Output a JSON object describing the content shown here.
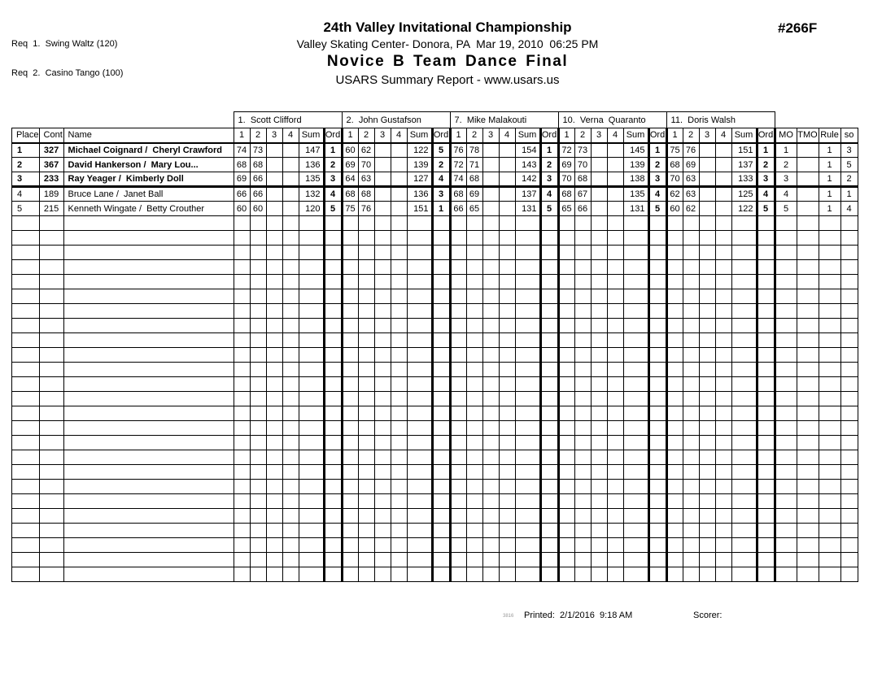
{
  "req": {
    "lines": [
      "Req  1.  Swing Waltz (120)",
      "Req  2.  Casino Tango (100)"
    ]
  },
  "header": {
    "event_number": "#266F",
    "title": "24th Valley Invitational Championship",
    "subtitle": "Valley Skating Center- Donora, PA  Mar 19, 2010  06:25 PM",
    "event_title": "Novice B Team Dance Final",
    "report_title": "USARS Summary Report - www.usars.us"
  },
  "table": {
    "left_headers": [
      "Place",
      "Cont",
      "Name"
    ],
    "judges": [
      "1.  Scott Clifford",
      "2.  John Gustafson",
      "7.  Mike Malakouti",
      "10.  Verna  Quaranto",
      "11.  Doris Walsh"
    ],
    "judge_subheaders": [
      "1",
      "2",
      "3",
      "4",
      "Sum",
      "Ord"
    ],
    "right_headers": [
      "MO",
      "TMO",
      "Rule",
      "so"
    ],
    "rows": [
      {
        "place": "1",
        "cont": "327",
        "name": "Michael Coignard /  Cheryl Crawford",
        "bold": true,
        "judge_scores": [
          [
            "74",
            "73",
            "",
            "",
            "147",
            "1"
          ],
          [
            "60",
            "62",
            "",
            "",
            "122",
            "5"
          ],
          [
            "76",
            "78",
            "",
            "",
            "154",
            "1"
          ],
          [
            "72",
            "73",
            "",
            "",
            "145",
            "1"
          ],
          [
            "75",
            "76",
            "",
            "",
            "151",
            "1"
          ]
        ],
        "mo": "1",
        "tmo": "",
        "rule": "1",
        "so": "3"
      },
      {
        "place": "2",
        "cont": "367",
        "name": "David Hankerson /  Mary Lou...",
        "bold": true,
        "judge_scores": [
          [
            "68",
            "68",
            "",
            "",
            "136",
            "2"
          ],
          [
            "69",
            "70",
            "",
            "",
            "139",
            "2"
          ],
          [
            "72",
            "71",
            "",
            "",
            "143",
            "2"
          ],
          [
            "69",
            "70",
            "",
            "",
            "139",
            "2"
          ],
          [
            "68",
            "69",
            "",
            "",
            "137",
            "2"
          ]
        ],
        "mo": "2",
        "tmo": "",
        "rule": "1",
        "so": "5"
      },
      {
        "place": "3",
        "cont": "233",
        "name": "Ray Yeager /  Kimberly Doll",
        "bold": true,
        "judge_scores": [
          [
            "69",
            "66",
            "",
            "",
            "135",
            "3"
          ],
          [
            "64",
            "63",
            "",
            "",
            "127",
            "4"
          ],
          [
            "74",
            "68",
            "",
            "",
            "142",
            "3"
          ],
          [
            "70",
            "68",
            "",
            "",
            "138",
            "3"
          ],
          [
            "70",
            "63",
            "",
            "",
            "133",
            "3"
          ]
        ],
        "mo": "3",
        "tmo": "",
        "rule": "1",
        "so": "2"
      },
      {
        "place": "4",
        "cont": "189",
        "name": "Bruce Lane /  Janet Ball",
        "bold": false,
        "judge_scores": [
          [
            "66",
            "66",
            "",
            "",
            "132",
            "4"
          ],
          [
            "68",
            "68",
            "",
            "",
            "136",
            "3"
          ],
          [
            "68",
            "69",
            "",
            "",
            "137",
            "4"
          ],
          [
            "68",
            "67",
            "",
            "",
            "135",
            "4"
          ],
          [
            "62",
            "63",
            "",
            "",
            "125",
            "4"
          ]
        ],
        "mo": "4",
        "tmo": "",
        "rule": "1",
        "so": "1"
      },
      {
        "place": "5",
        "cont": "215",
        "name": "Kenneth Wingate /  Betty Crouther",
        "bold": false,
        "judge_scores": [
          [
            "60",
            "60",
            "",
            "",
            "120",
            "5"
          ],
          [
            "75",
            "76",
            "",
            "",
            "151",
            "1"
          ],
          [
            "66",
            "65",
            "",
            "",
            "131",
            "5"
          ],
          [
            "65",
            "66",
            "",
            "",
            "131",
            "5"
          ],
          [
            "60",
            "62",
            "",
            "",
            "122",
            "5"
          ]
        ],
        "mo": "5",
        "tmo": "",
        "rule": "1",
        "so": "4"
      }
    ],
    "empty_rows": 25
  },
  "footer": {
    "code": "3816",
    "printed": "Printed:  2/1/2016  9:18 AM",
    "scorer": "Scorer:"
  }
}
